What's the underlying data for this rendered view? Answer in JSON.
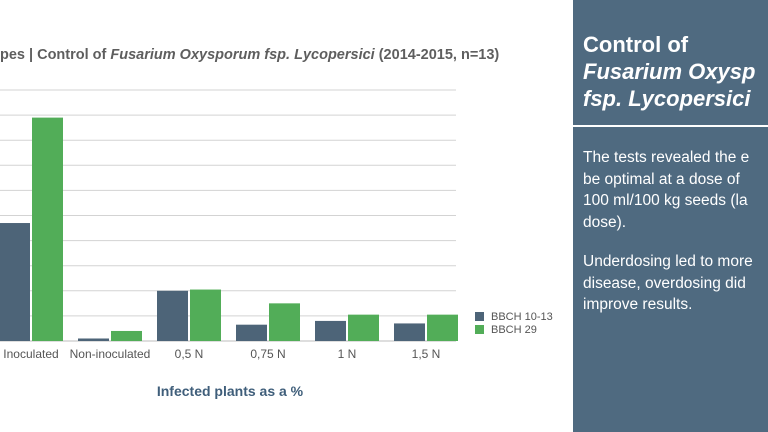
{
  "chart_data": {
    "type": "bar",
    "title_parts": [
      "pes | Control of ",
      "Fusarium Oxysporum fsp. Lycopersici",
      " (2014-2015, n=13)"
    ],
    "xlabel": "Infected plants as a %",
    "ylabel": "",
    "categories": [
      "Inoculated",
      "Non-inoculated",
      "0,5 N",
      "0,75 N",
      "1 N",
      "1,5 N"
    ],
    "series": [
      {
        "name": "BBCH 10-13",
        "color": "#4d6478",
        "values": [
          47,
          1,
          20,
          6.5,
          8,
          7
        ]
      },
      {
        "name": "BBCH 29",
        "color": "#52ad58",
        "values": [
          89,
          4,
          20.5,
          15,
          10.5,
          10.5
        ]
      }
    ],
    "ylim": [
      0,
      100
    ],
    "grid": true,
    "legend_position": "right"
  },
  "panel": {
    "heading_line1": "Control of",
    "heading_line2": "Fusarium Oxysp",
    "heading_line3": "fsp. Lycopersici",
    "para1_lines": [
      "The tests revealed the e",
      "be optimal at a dose of",
      "100 ml/100 kg seeds (la",
      "dose)."
    ],
    "para2_lines": [
      "Underdosing led to more",
      "disease, overdosing did",
      "improve results."
    ],
    "background_color": "#4f6a80"
  }
}
